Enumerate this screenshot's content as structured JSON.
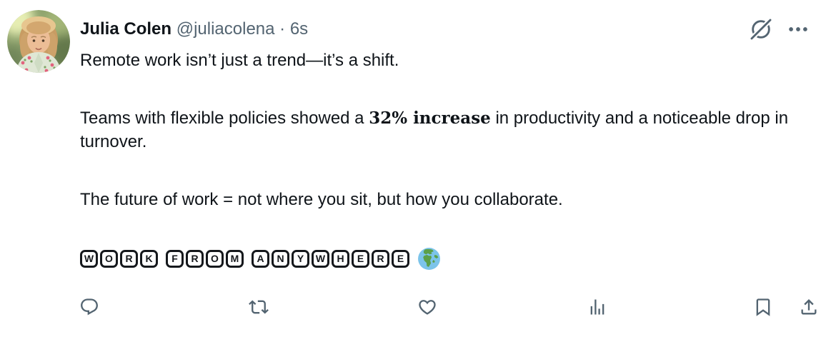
{
  "header": {
    "name": "Julia Colen",
    "handle": "@juliacolena",
    "separator": "·",
    "timestamp": "6s"
  },
  "tweet": {
    "paragraphs": [
      {
        "text": "Remote work isn’t just a trend—it’s a shift."
      },
      {
        "pre": "Teams with flexible policies showed a ",
        "bold": "32% increase",
        "post": " in productivity and a noticeable drop in turnover."
      },
      {
        "text": "The future of work = not where you sit, but how you collaborate."
      }
    ],
    "hashtag_text": "WORK FROM ANYWHERE",
    "emoji": "🌍"
  },
  "icons": {
    "grok": "grok-circle-slash",
    "more": "ellipsis-more-options",
    "reply": "reply-speech-bubble",
    "repost": "retweet-arrows",
    "like": "heart-outline",
    "views": "bar-chart-analytics",
    "bookmark": "bookmark-outline",
    "share": "share-upload-arrow",
    "emoji_globe": "globe-europe-africa"
  },
  "colors": {
    "background": "#ffffff",
    "text_primary": "#0f1419",
    "text_secondary": "#536471",
    "icon": "#536471",
    "letterbox": "#15181c",
    "globe_blue": "#7cc4ea",
    "globe_green": "#5ba04a"
  }
}
